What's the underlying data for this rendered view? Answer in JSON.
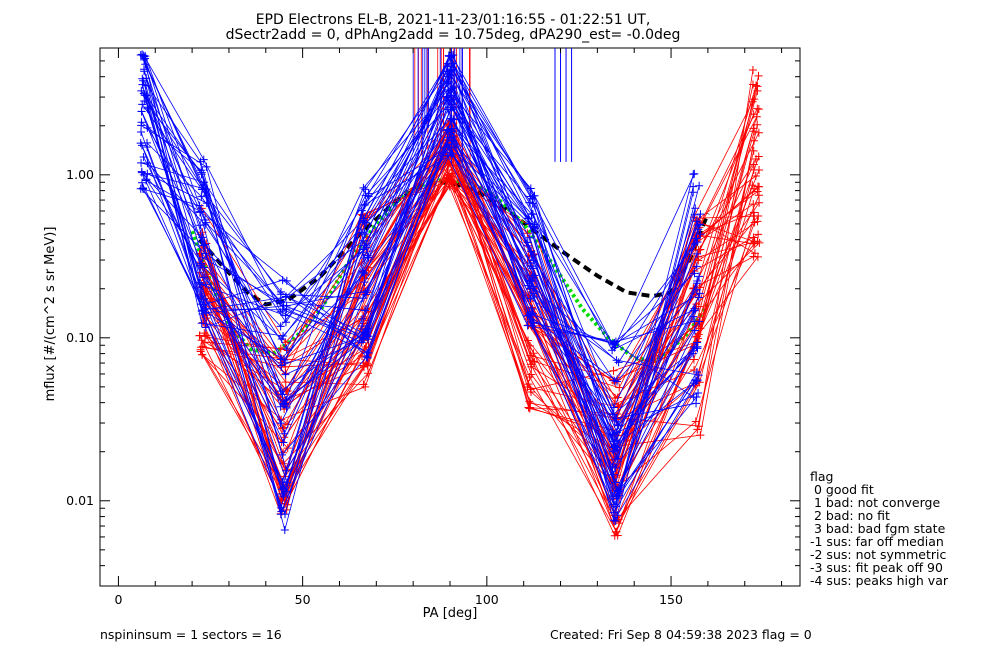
{
  "chart_data": {
    "type": "line",
    "title": "EPD Electrons EL-B, 2021-11-23/01:16:55 - 01:22:51 UT,",
    "subtitle": "dSectr2add = 0, dPhAng2add = 10.75deg, dPA290_est=  -0.0deg",
    "xlabel": "PA [deg]",
    "ylabel": "mflux [#/(cm^2 s sr MeV)]",
    "x_ticks": [
      "0",
      "50",
      "100",
      "150"
    ],
    "y_ticks": [
      "0.01",
      "0.10",
      "1.00"
    ],
    "xlim": [
      -5,
      185
    ],
    "ylim": [
      0.003,
      6
    ],
    "yscale": "log",
    "legend": {
      "title": "flag",
      "items": [
        " 0 good fit",
        " 1 bad: not converge",
        " 2 bad: no fit",
        " 3 bad: bad fgm state",
        "-1 sus: far off median",
        "-2 sus: not symmetric",
        "-3 sus: fit peak off 90",
        "-4 sus: peaks high var"
      ]
    },
    "footer": {
      "left": "nspininsum =  1  sectors = 16",
      "right": "Created: Fri Sep  8 04:59:38 2023   flag = 0"
    },
    "series": [
      {
        "color": "#000000",
        "style": "dashed",
        "x": [
          22,
          28,
          35,
          40,
          46,
          55,
          65,
          75,
          83,
          90,
          97,
          105,
          113,
          122,
          130,
          138,
          145,
          150,
          155,
          160
        ],
        "y": [
          0.4,
          0.28,
          0.19,
          0.16,
          0.17,
          0.24,
          0.42,
          0.68,
          0.88,
          0.9,
          0.8,
          0.62,
          0.45,
          0.32,
          0.24,
          0.19,
          0.18,
          0.19,
          0.3,
          0.58
        ]
      },
      {
        "color": "#00dd00",
        "style": "dotted",
        "x": [
          20,
          25,
          30,
          36,
          42,
          48,
          55,
          62,
          70,
          78,
          85,
          90,
          95,
          102,
          110,
          118,
          126,
          133,
          140,
          146,
          150,
          155,
          160
        ],
        "y": [
          0.45,
          0.22,
          0.12,
          0.085,
          0.08,
          0.1,
          0.15,
          0.28,
          0.5,
          0.78,
          0.92,
          0.93,
          0.9,
          0.75,
          0.5,
          0.28,
          0.15,
          0.1,
          0.075,
          0.072,
          0.085,
          0.11,
          0.16
        ]
      },
      {
        "color": "#ff0000",
        "style": "bundle",
        "x": [
          23,
          45,
          67,
          90,
          112,
          135,
          157,
          173
        ],
        "y": [
          0.25,
          0.018,
          0.25,
          1.3,
          0.18,
          0.012,
          0.25,
          2.6
        ],
        "spread": [
          [
            0.07,
            0.7
          ],
          [
            0.008,
            0.13
          ],
          [
            0.05,
            0.6
          ],
          [
            0.85,
            2.2
          ],
          [
            0.035,
            0.5
          ],
          [
            0.006,
            0.07
          ],
          [
            0.025,
            0.6
          ],
          [
            0.3,
            4.5
          ]
        ]
      },
      {
        "color": "#0000ff",
        "style": "bundle",
        "x": [
          7,
          23,
          45,
          67,
          90,
          112,
          135,
          157
        ],
        "y": [
          3.0,
          0.4,
          0.04,
          0.45,
          3.0,
          0.3,
          0.03,
          0.4
        ],
        "spread": [
          [
            0.8,
            5.5
          ],
          [
            0.11,
            1.4
          ],
          [
            0.0065,
            0.25
          ],
          [
            0.075,
            0.9
          ],
          [
            1.3,
            5.5
          ],
          [
            0.11,
            0.85
          ],
          [
            0.007,
            0.1
          ],
          [
            0.037,
            1.05
          ]
        ]
      }
    ]
  }
}
